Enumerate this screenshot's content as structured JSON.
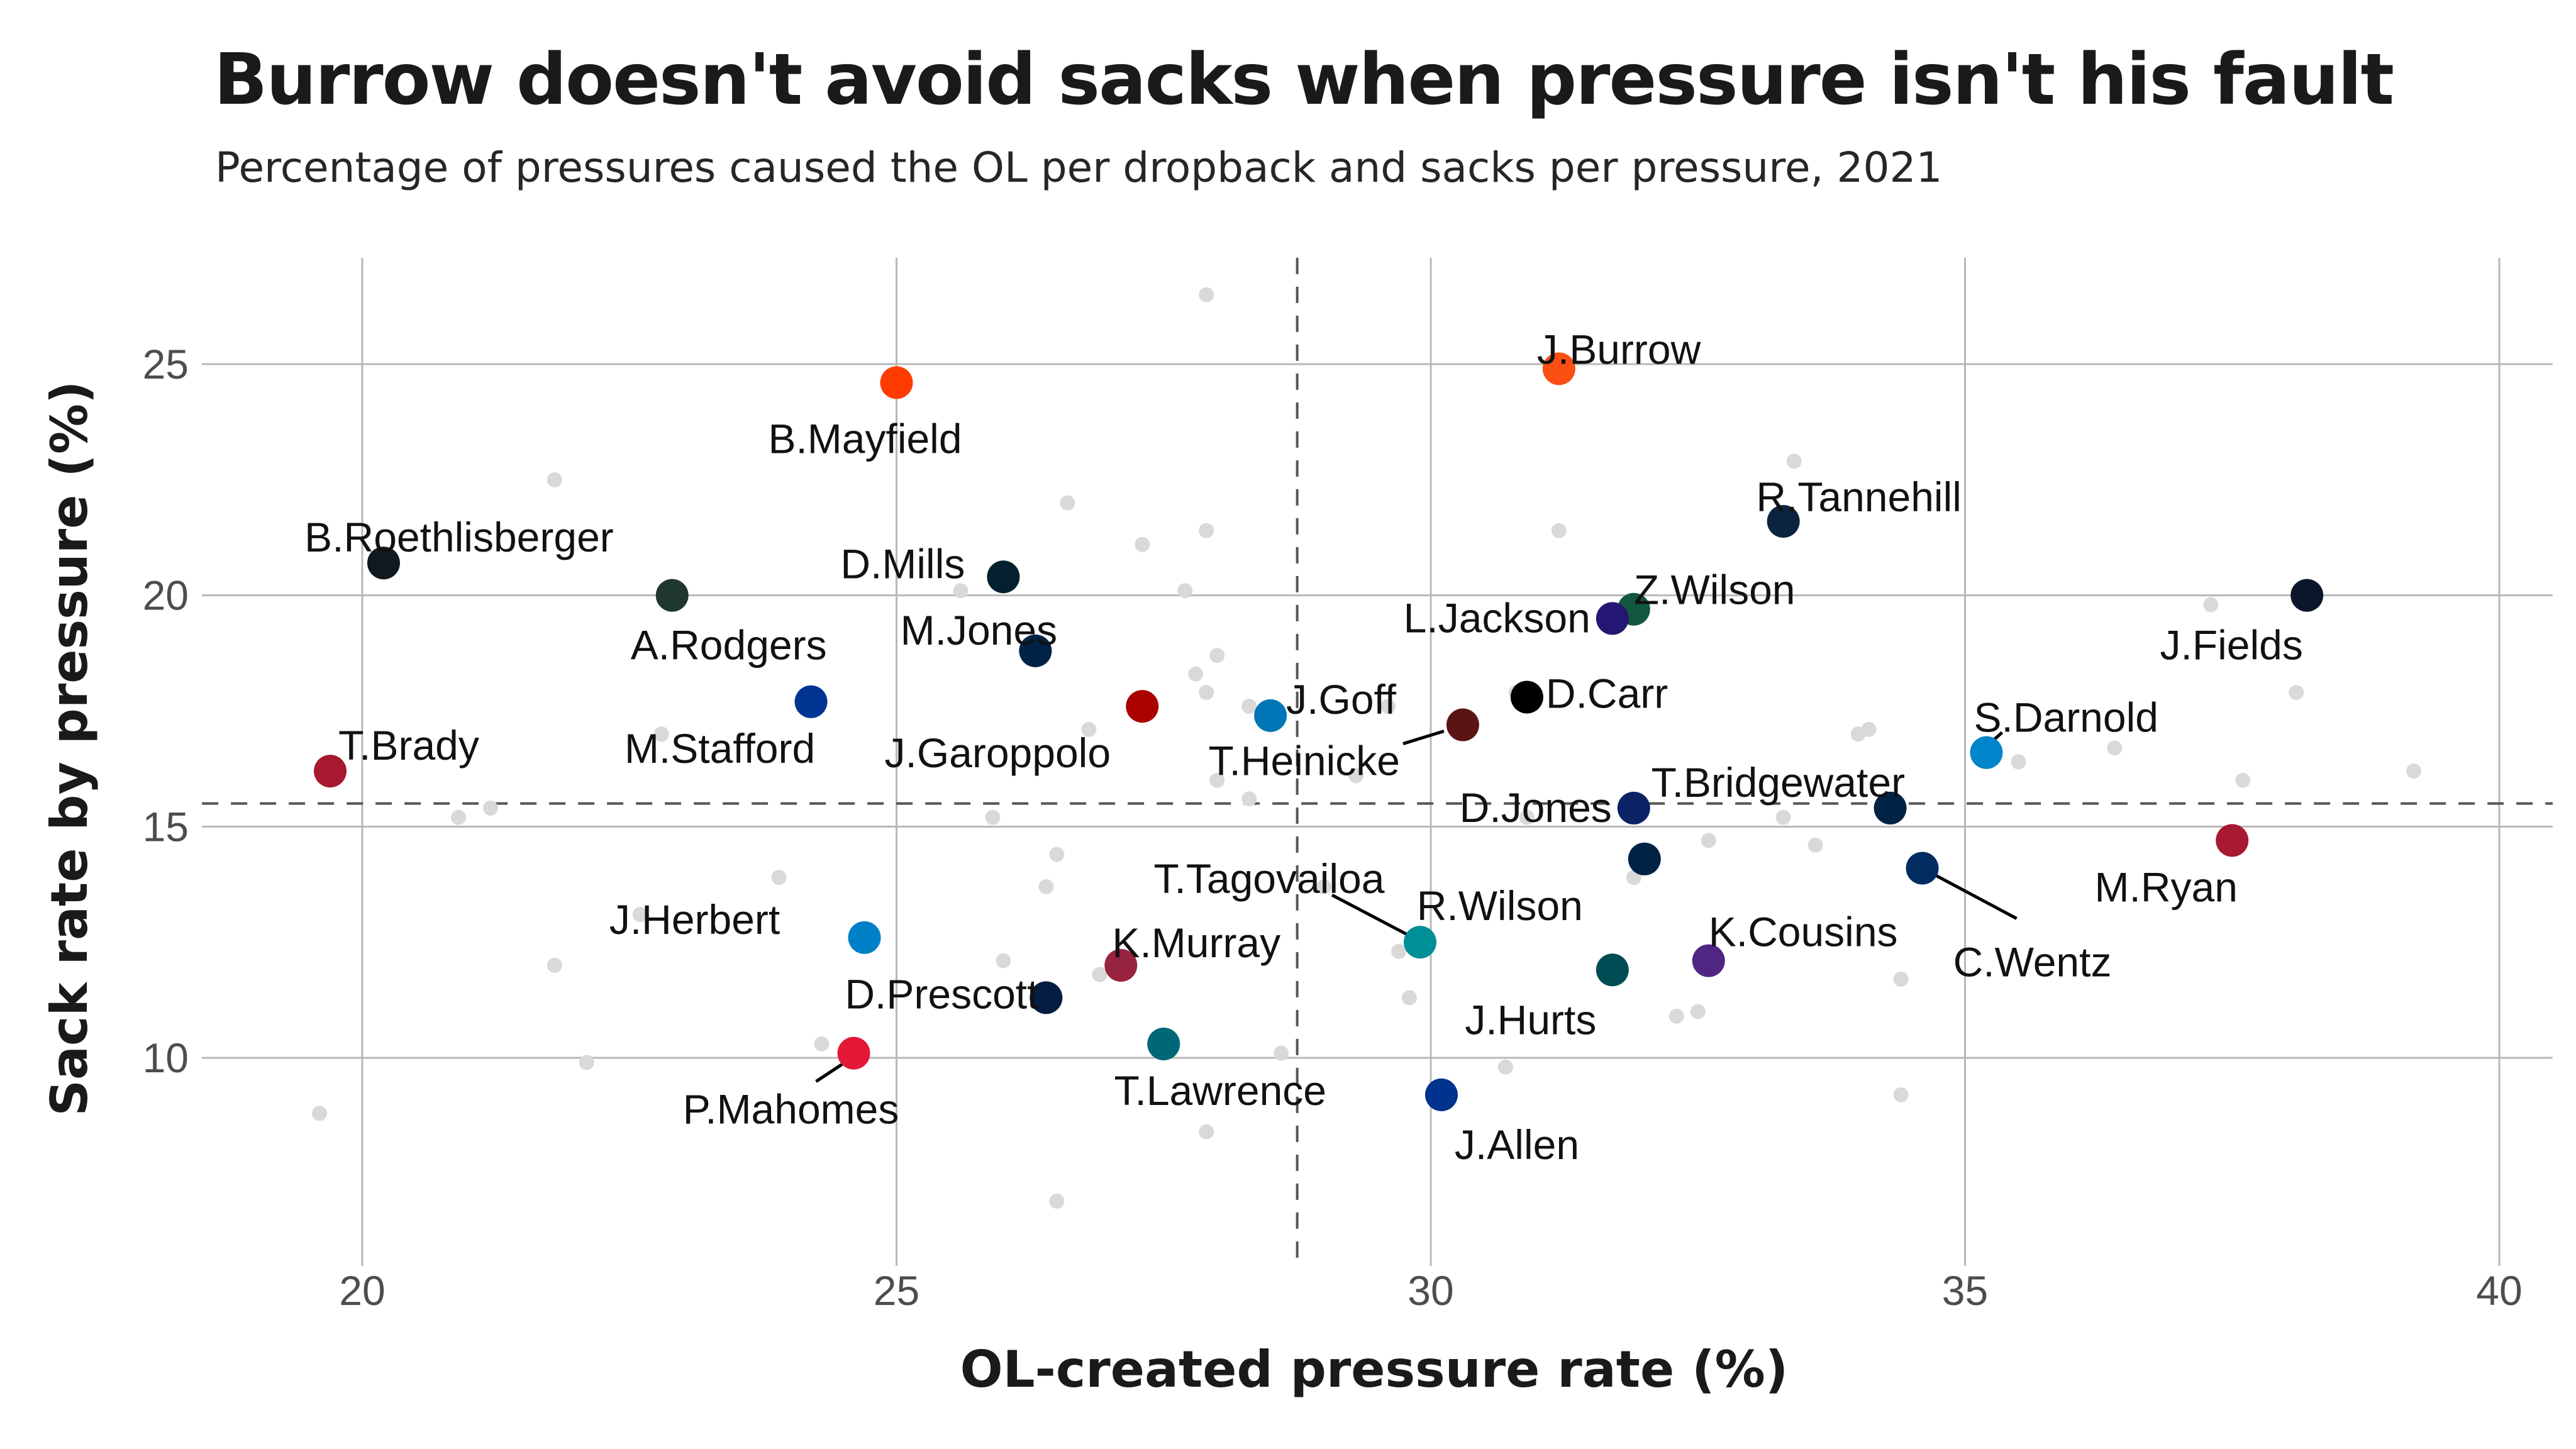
{
  "chart_data": {
    "type": "scatter",
    "title": "Burrow doesn't avoid sacks when pressure isn't his fault",
    "subtitle": "Percentage of pressures caused the OL per dropback and sacks per pressure, 2021",
    "xlabel": "OL-created pressure rate (%)",
    "ylabel": "Sack rate by pressure (%)",
    "xlim": [
      18.5,
      40.5
    ],
    "ylim": [
      5.5,
      27.3
    ],
    "x_ticks": [
      20,
      25,
      30,
      35,
      40
    ],
    "y_ticks": [
      10,
      15,
      20,
      25
    ],
    "x_reference_line": 28.75,
    "y_reference_line": 15.5,
    "grid": true,
    "labeled_points": [
      {
        "name": "J.Burrow",
        "x": 31.2,
        "y": 24.9,
        "color": "#FB4F14"
      },
      {
        "name": "B.Mayfield",
        "x": 25.0,
        "y": 24.6,
        "color": "#FF3C00"
      },
      {
        "name": "R.Tannehill",
        "x": 33.3,
        "y": 21.6,
        "color": "#0C2340"
      },
      {
        "name": "B.Roethlisberger",
        "x": 20.2,
        "y": 20.7,
        "color": "#101820"
      },
      {
        "name": "D.Mills",
        "x": 26.0,
        "y": 20.4,
        "color": "#03202F"
      },
      {
        "name": "A.Rodgers",
        "x": 22.9,
        "y": 20.0,
        "color": "#203731"
      },
      {
        "name": "J.Fields",
        "x": 38.2,
        "y": 20.0,
        "color": "#0B162A"
      },
      {
        "name": "Z.Wilson",
        "x": 31.9,
        "y": 19.7,
        "color": "#125740"
      },
      {
        "name": "L.Jackson",
        "x": 31.7,
        "y": 19.5,
        "color": "#241773"
      },
      {
        "name": "M.Jones",
        "x": 26.3,
        "y": 18.8,
        "color": "#002244"
      },
      {
        "name": "D.Carr",
        "x": 30.9,
        "y": 17.8,
        "color": "#000000"
      },
      {
        "name": "M.Stafford",
        "x": 24.2,
        "y": 17.7,
        "color": "#003594"
      },
      {
        "name": "J.Garoppolo",
        "x": 27.3,
        "y": 17.6,
        "color": "#AA0000"
      },
      {
        "name": "J.Goff",
        "x": 28.5,
        "y": 17.4,
        "color": "#0076B6"
      },
      {
        "name": "T.Heinicke",
        "x": 30.3,
        "y": 17.2,
        "color": "#5A1414"
      },
      {
        "name": "S.Darnold",
        "x": 35.2,
        "y": 16.6,
        "color": "#0085CA"
      },
      {
        "name": "T.Brady",
        "x": 19.7,
        "y": 16.2,
        "color": "#A71930"
      },
      {
        "name": "D.Jones",
        "x": 31.9,
        "y": 15.4,
        "color": "#0B2265"
      },
      {
        "name": "T.Bridgewater",
        "x": 34.3,
        "y": 15.4,
        "color": "#002244"
      },
      {
        "name": "M.Ryan",
        "x": 37.5,
        "y": 14.7,
        "color": "#A71930"
      },
      {
        "name": "R.Wilson",
        "x": 32.0,
        "y": 14.3,
        "color": "#002244"
      },
      {
        "name": "C.Wentz",
        "x": 34.6,
        "y": 14.1,
        "color": "#002C5F"
      },
      {
        "name": "J.Herbert",
        "x": 24.7,
        "y": 12.6,
        "color": "#0080C6"
      },
      {
        "name": "T.Tagovailoa",
        "x": 29.9,
        "y": 12.5,
        "color": "#008E97"
      },
      {
        "name": "K.Cousins",
        "x": 32.6,
        "y": 12.1,
        "color": "#4F2683"
      },
      {
        "name": "K.Murray",
        "x": 27.1,
        "y": 12.0,
        "color": "#97233F"
      },
      {
        "name": "J.Hurts",
        "x": 31.7,
        "y": 11.9,
        "color": "#004C54"
      },
      {
        "name": "D.Prescott",
        "x": 26.4,
        "y": 11.3,
        "color": "#041E42"
      },
      {
        "name": "T.Lawrence",
        "x": 27.5,
        "y": 10.3,
        "color": "#006778"
      },
      {
        "name": "P.Mahomes",
        "x": 24.6,
        "y": 10.1,
        "color": "#E31837"
      },
      {
        "name": "J.Allen",
        "x": 30.1,
        "y": 9.2,
        "color": "#00338D"
      }
    ],
    "background_points": [
      {
        "x": 27.9,
        "y": 26.5
      },
      {
        "x": 33.4,
        "y": 22.9
      },
      {
        "x": 21.8,
        "y": 22.5
      },
      {
        "x": 26.6,
        "y": 22.0
      },
      {
        "x": 27.9,
        "y": 21.4
      },
      {
        "x": 31.2,
        "y": 21.4
      },
      {
        "x": 27.3,
        "y": 21.1
      },
      {
        "x": 25.6,
        "y": 20.1
      },
      {
        "x": 27.7,
        "y": 20.1
      },
      {
        "x": 37.3,
        "y": 19.8
      },
      {
        "x": 28.0,
        "y": 18.7
      },
      {
        "x": 27.8,
        "y": 18.3
      },
      {
        "x": 27.9,
        "y": 17.9
      },
      {
        "x": 29.6,
        "y": 17.6
      },
      {
        "x": 28.3,
        "y": 17.6
      },
      {
        "x": 30.8,
        "y": 17.9
      },
      {
        "x": 38.1,
        "y": 17.9
      },
      {
        "x": 26.8,
        "y": 17.1
      },
      {
        "x": 34.1,
        "y": 17.1
      },
      {
        "x": 34.0,
        "y": 17.0
      },
      {
        "x": 22.8,
        "y": 17.0
      },
      {
        "x": 36.4,
        "y": 16.7
      },
      {
        "x": 29.3,
        "y": 16.1
      },
      {
        "x": 28.0,
        "y": 16.0
      },
      {
        "x": 35.5,
        "y": 16.4
      },
      {
        "x": 28.3,
        "y": 15.6
      },
      {
        "x": 39.2,
        "y": 16.2
      },
      {
        "x": 21.2,
        "y": 15.4
      },
      {
        "x": 20.9,
        "y": 15.2
      },
      {
        "x": 25.9,
        "y": 15.2
      },
      {
        "x": 30.9,
        "y": 15.2
      },
      {
        "x": 33.3,
        "y": 15.2
      },
      {
        "x": 32.6,
        "y": 14.7
      },
      {
        "x": 33.6,
        "y": 14.6
      },
      {
        "x": 26.5,
        "y": 14.4
      },
      {
        "x": 23.9,
        "y": 13.9
      },
      {
        "x": 31.9,
        "y": 13.9
      },
      {
        "x": 26.4,
        "y": 13.7
      },
      {
        "x": 29.0,
        "y": 13.7
      },
      {
        "x": 22.6,
        "y": 13.1
      },
      {
        "x": 29.7,
        "y": 12.3
      },
      {
        "x": 21.8,
        "y": 12.0
      },
      {
        "x": 26.0,
        "y": 12.1
      },
      {
        "x": 26.9,
        "y": 11.8
      },
      {
        "x": 34.4,
        "y": 11.7
      },
      {
        "x": 29.8,
        "y": 11.3
      },
      {
        "x": 32.3,
        "y": 10.9
      },
      {
        "x": 32.5,
        "y": 11.0
      },
      {
        "x": 24.3,
        "y": 10.3
      },
      {
        "x": 28.6,
        "y": 10.1
      },
      {
        "x": 22.1,
        "y": 9.9
      },
      {
        "x": 30.7,
        "y": 9.8
      },
      {
        "x": 34.4,
        "y": 9.2
      },
      {
        "x": 19.6,
        "y": 8.8
      },
      {
        "x": 27.9,
        "y": 8.4
      },
      {
        "x": 26.5,
        "y": 6.9
      },
      {
        "x": 37.6,
        "y": 16.0
      }
    ]
  }
}
